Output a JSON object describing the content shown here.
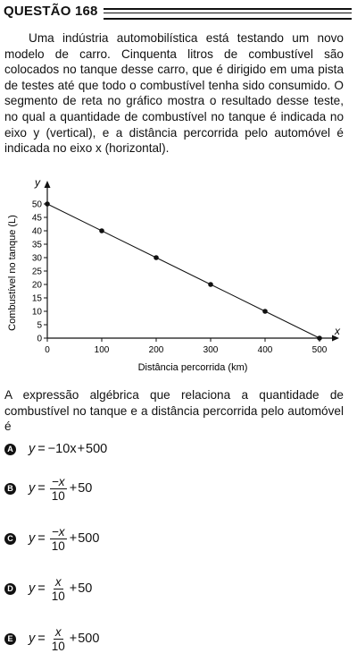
{
  "question": {
    "title": "QUESTÃO 168",
    "paragraph": "Uma indústria automobilística está testando um novo modelo de carro. Cinquenta litros de combustível são colocados no tanque desse carro, que é dirigido em uma pista de testes até que todo o combustível tenha sido consumido. O segmento de reta no gráfico mostra o resultado desse teste, no qual a quantidade de combustível no tanque é indicada no eixo y (vertical), e a distância percorrida pelo automóvel é indicada no eixo x (horizontal).",
    "prompt": "A expressão algébrica que relaciona a quantidade de combustível no tanque e a distância percorrida pelo automóvel é"
  },
  "chart_data": {
    "type": "line",
    "x": [
      0,
      100,
      200,
      300,
      400,
      500
    ],
    "y": [
      50,
      40,
      30,
      20,
      10,
      0
    ],
    "xlabel": "Distância percorrida (km)",
    "ylabel": "Combustível no tanque (L)",
    "x_axis_letter": "x",
    "y_axis_letter": "y",
    "xticks": [
      "0",
      "100",
      "200",
      "300",
      "400",
      "500"
    ],
    "yticks": [
      "0",
      "5",
      "10",
      "15",
      "20",
      "25",
      "30",
      "35",
      "40",
      "45",
      "50"
    ],
    "xlim": [
      0,
      500
    ],
    "ylim": [
      0,
      50
    ],
    "grid": false
  },
  "options": [
    {
      "letter": "A",
      "kind": "linear",
      "y": "y",
      "eq": "=",
      "coef": "−10x",
      "plus": "+",
      "const": "500"
    },
    {
      "letter": "B",
      "kind": "fraction",
      "y": "y",
      "eq": "=",
      "num": "−x",
      "den": "10",
      "plus": "+",
      "const": "50"
    },
    {
      "letter": "C",
      "kind": "fraction",
      "y": "y",
      "eq": "=",
      "num": "−x",
      "den": "10",
      "plus": "+",
      "const": "500"
    },
    {
      "letter": "D",
      "kind": "fraction",
      "y": "y",
      "eq": "=",
      "num": "x",
      "den": "10",
      "plus": "+",
      "const": "50"
    },
    {
      "letter": "E",
      "kind": "fraction",
      "y": "y",
      "eq": "=",
      "num": "x",
      "den": "10",
      "plus": "+",
      "const": "500"
    }
  ]
}
